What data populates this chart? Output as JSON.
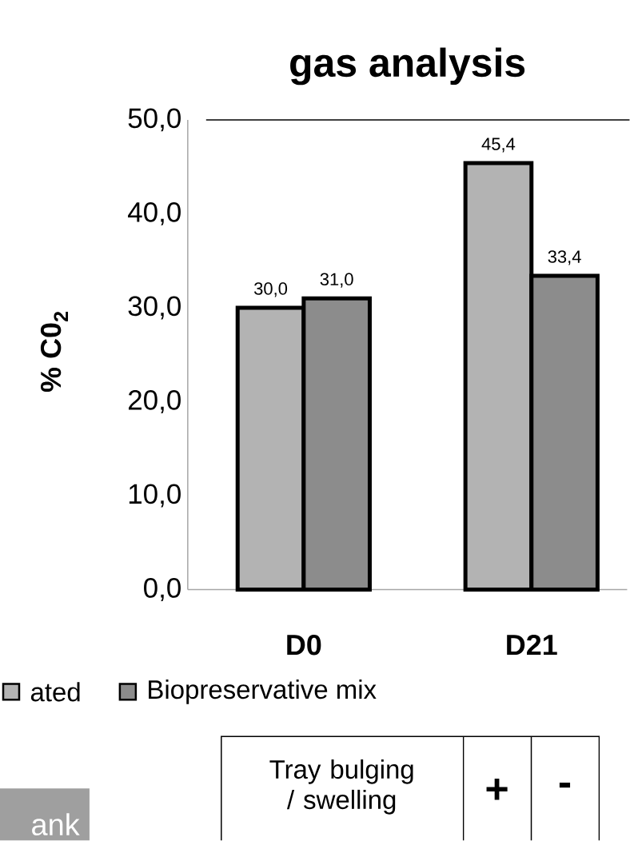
{
  "chart_data": {
    "type": "bar",
    "title": "gas analysis",
    "ylabel": "% C0$_{2}$",
    "categories": [
      "D0",
      "D21"
    ],
    "series": [
      {
        "name": "ated",
        "color": "#b3b3b3",
        "values": [
          30.0,
          45.4
        ],
        "value_labels": [
          "30,0",
          "45,4"
        ]
      },
      {
        "name": "Biopreservative mix",
        "color": "#8c8c8c",
        "values": [
          31.0,
          33.4
        ],
        "value_labels": [
          "31,0",
          "33,4"
        ]
      }
    ],
    "ylim": [
      0,
      50
    ],
    "yticks": [
      {
        "value": 0,
        "label": "0,0"
      },
      {
        "value": 10,
        "label": "10,0"
      },
      {
        "value": 20,
        "label": "20,0"
      },
      {
        "value": 30,
        "label": "30,0"
      },
      {
        "value": 40,
        "label": "40,0"
      },
      {
        "value": 50,
        "label": "50,0"
      }
    ],
    "grid": false,
    "legend": "bottom",
    "annotations": [
      "ank",
      "Tray bulging / swelling",
      "+",
      "-"
    ]
  }
}
